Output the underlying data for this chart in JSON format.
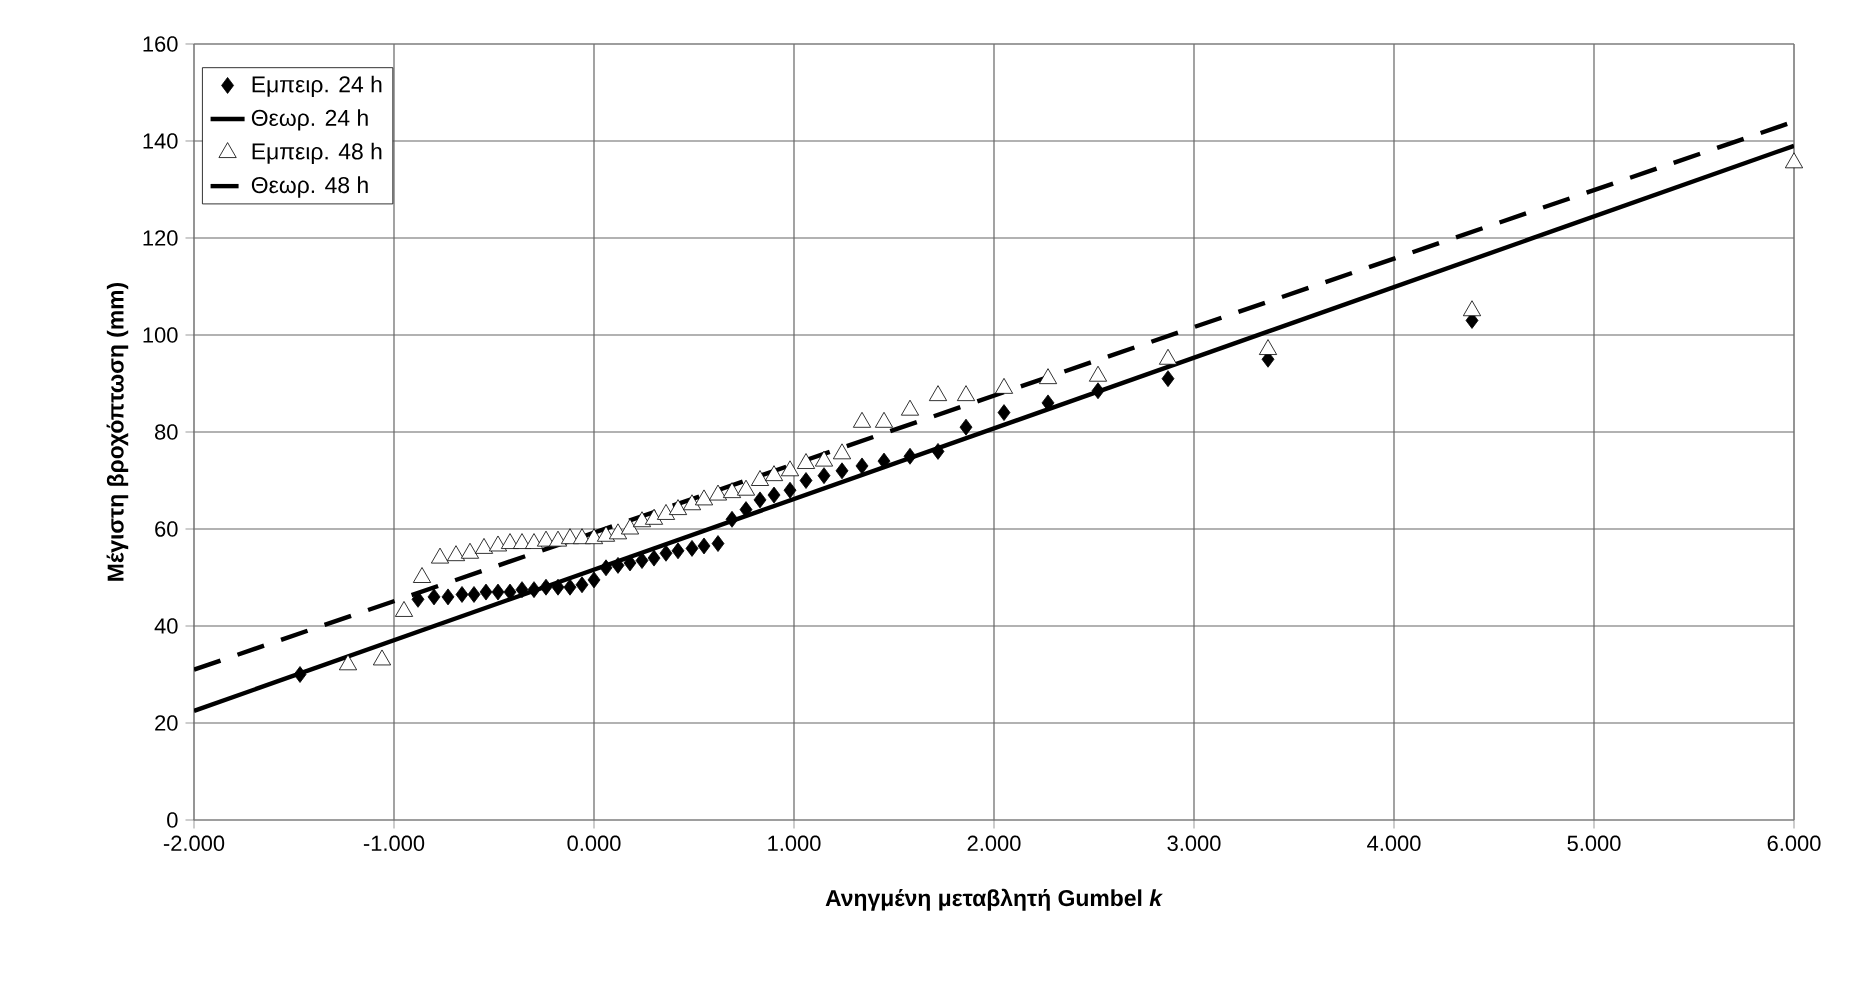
{
  "chart_data": {
    "type": "scatter",
    "xlabel": "Ανηγμένη μεταβλητή Gumbel *k*",
    "ylabel": "Μέγιστη βροχόπτωση (mm)",
    "xlim": [
      -2,
      6
    ],
    "ylim": [
      0,
      160
    ],
    "xticks": [
      {
        "value": -2,
        "label": "-2.000"
      },
      {
        "value": -1,
        "label": "-1.000"
      },
      {
        "value": 0,
        "label": "0.000"
      },
      {
        "value": 1,
        "label": "1.000"
      },
      {
        "value": 2,
        "label": "2.000"
      },
      {
        "value": 3,
        "label": "3.000"
      },
      {
        "value": 4,
        "label": "4.000"
      },
      {
        "value": 5,
        "label": "5.000"
      },
      {
        "value": 6,
        "label": "6.000"
      }
    ],
    "yticks": [
      0,
      20,
      40,
      60,
      80,
      100,
      120,
      140,
      160
    ],
    "grid": true,
    "legend": "top left",
    "series": [
      {
        "name": "Εμπειρ. 24 h",
        "type": "scatter",
        "marker": "diamond",
        "color": "#000000",
        "x": [
          -1.47,
          -0.88,
          -0.8,
          -0.73,
          -0.66,
          -0.6,
          -0.54,
          -0.48,
          -0.42,
          -0.36,
          -0.3,
          -0.24,
          -0.18,
          -0.12,
          -0.06,
          0.0,
          0.06,
          0.12,
          0.18,
          0.24,
          0.3,
          0.36,
          0.42,
          0.49,
          0.55,
          0.62,
          0.69,
          0.76,
          0.83,
          0.9,
          0.98,
          1.06,
          1.15,
          1.24,
          1.34,
          1.45,
          1.58,
          1.72,
          1.86,
          2.05,
          2.27,
          2.52,
          2.87,
          3.37,
          4.39
        ],
        "values": [
          30,
          45.5,
          46,
          46,
          46.5,
          46.5,
          47,
          47,
          47,
          47.5,
          47.5,
          48,
          48,
          48,
          48.5,
          49.5,
          52,
          52.5,
          53,
          53.5,
          54,
          55,
          55.5,
          56,
          56.5,
          57,
          62,
          64,
          66,
          67,
          68,
          70,
          71,
          72,
          73,
          74,
          75,
          76,
          81,
          84,
          86,
          88.5,
          91,
          95,
          103
        ]
      },
      {
        "name": "Θεωρ. 24 h",
        "type": "line",
        "marker": "none",
        "line_style": "solid",
        "color": "#000000",
        "x": [
          -2,
          6
        ],
        "values": [
          22.5,
          139
        ]
      },
      {
        "name": "Εμπειρ. 48 h",
        "type": "scatter",
        "marker": "triangle",
        "color": "#000000",
        "x": [
          -1.23,
          -1.06,
          -0.95,
          -0.86,
          -0.77,
          -0.69,
          -0.62,
          -0.55,
          -0.48,
          -0.42,
          -0.36,
          -0.3,
          -0.24,
          -0.18,
          -0.12,
          -0.06,
          0.0,
          0.06,
          0.12,
          0.18,
          0.24,
          0.3,
          0.36,
          0.42,
          0.49,
          0.55,
          0.62,
          0.69,
          0.76,
          0.83,
          0.9,
          0.98,
          1.06,
          1.15,
          1.24,
          1.34,
          1.45,
          1.58,
          1.72,
          1.86,
          2.05,
          2.27,
          2.52,
          2.87,
          3.37,
          4.39,
          6.0
        ],
        "values": [
          32,
          33,
          43,
          50,
          54,
          54.5,
          55,
          56,
          56.5,
          57,
          57,
          57,
          57.5,
          57.5,
          58,
          58,
          58,
          58.5,
          59,
          60,
          61.5,
          62,
          63,
          64,
          65,
          66,
          67,
          67.5,
          68,
          70,
          71,
          72,
          73.5,
          74,
          75.5,
          82,
          82,
          84.5,
          87.5,
          87.5,
          89,
          91,
          91.5,
          95,
          97,
          105,
          135.5
        ]
      },
      {
        "name": "Θεωρ. 48 h",
        "type": "line",
        "marker": "none",
        "line_style": "dashed",
        "color": "#000000",
        "x": [
          -2,
          6
        ],
        "values": [
          31,
          144
        ]
      }
    ]
  }
}
